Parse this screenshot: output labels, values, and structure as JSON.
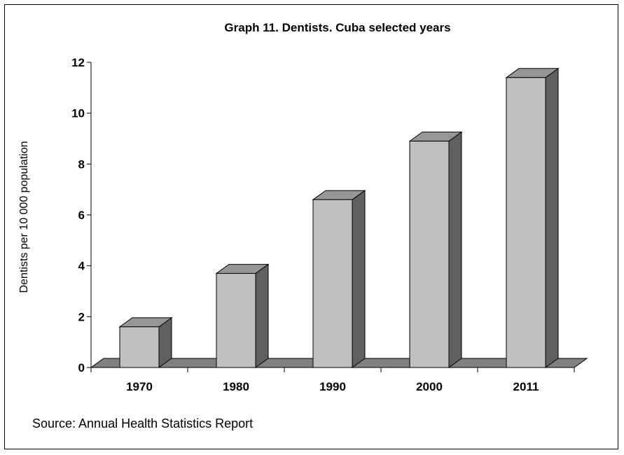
{
  "chart_data": {
    "type": "bar",
    "title": "Graph 11.  Dentists. Cuba selected years",
    "xlabel": "",
    "ylabel": "Dentists per 10 000 population",
    "categories": [
      "1970",
      "1980",
      "1990",
      "2000",
      "2011"
    ],
    "values": [
      1.6,
      3.7,
      6.6,
      8.9,
      11.4
    ],
    "ylim": [
      0,
      12
    ],
    "yticks": [
      0,
      2,
      4,
      6,
      8,
      10,
      12
    ],
    "grid": false,
    "legend": "none",
    "source": "Source: Annual Health Statistics Report",
    "colors": {
      "bar_front": "#c0c0c0",
      "bar_side": "#606060",
      "bar_top": "#969696",
      "floor": "#808080"
    }
  }
}
